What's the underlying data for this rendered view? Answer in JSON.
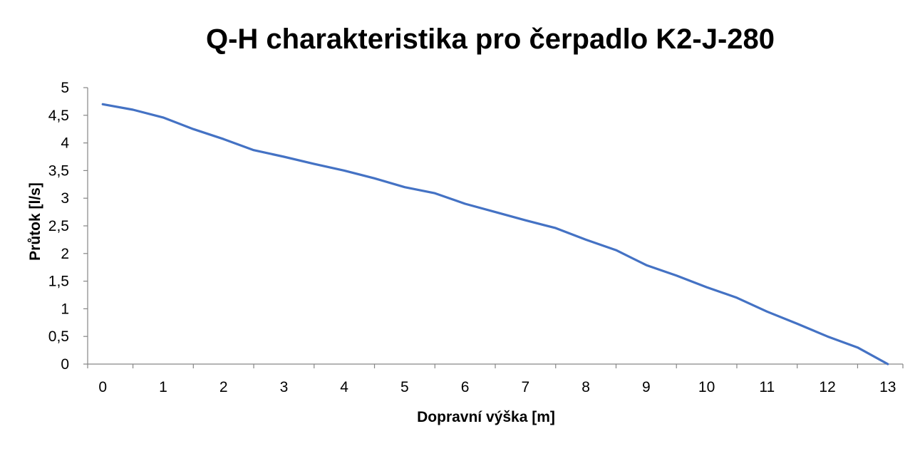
{
  "chart_data": {
    "type": "line",
    "title": "Q-H charakteristika pro čerpadlo K2-J-280",
    "xlabel": "Dopravní výška [m]",
    "ylabel": "Průtok [l/s]",
    "xlim": [
      -0.25,
      13.25
    ],
    "ylim": [
      0,
      5
    ],
    "x_ticks": [
      "0",
      "1",
      "2",
      "3",
      "4",
      "5",
      "6",
      "7",
      "8",
      "9",
      "10",
      "11",
      "12",
      "13"
    ],
    "y_ticks": [
      "0",
      "0,5",
      "1",
      "1,5",
      "2",
      "2,5",
      "3",
      "3,5",
      "4",
      "4,5",
      "5"
    ],
    "grid": false,
    "legend": "none",
    "series_color": "#4472C4",
    "series": [
      {
        "x": [
          0,
          0.5,
          1,
          1.5,
          2,
          2.5,
          3,
          3.5,
          4,
          4.5,
          5,
          5.5,
          6,
          6.5,
          7,
          7.5,
          8,
          8.5,
          9,
          9.5,
          10,
          10.5,
          11,
          11.5,
          12,
          12.5,
          13
        ],
        "values": [
          4.7,
          4.6,
          4.46,
          4.25,
          4.07,
          3.87,
          3.75,
          3.62,
          3.5,
          3.36,
          3.2,
          3.09,
          2.9,
          2.75,
          2.6,
          2.46,
          2.25,
          2.06,
          1.79,
          1.6,
          1.39,
          1.2,
          0.95,
          0.73,
          0.5,
          0.3,
          0
        ]
      }
    ]
  }
}
